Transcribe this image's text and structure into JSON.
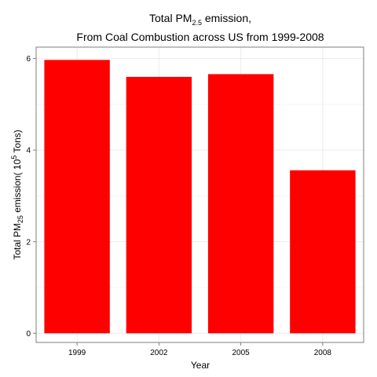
{
  "chart_data": {
    "type": "bar",
    "title_line1": {
      "prefix": "Total PM",
      "sub": "2.5",
      "suffix": " emission,"
    },
    "title_line2": "From Coal Combustion across US from 1999-2008",
    "xlabel": "Year",
    "ylabel": {
      "prefix": "Total PM",
      "sub": "25",
      "middle": " emission( 10",
      "sup": "5",
      "suffix": " Tons)"
    },
    "categories": [
      "1999",
      "2002",
      "2005",
      "2008"
    ],
    "values": [
      5.97,
      5.6,
      5.66,
      3.56
    ],
    "yticks": [
      0,
      2,
      4,
      6
    ],
    "ylim": [
      -0.2,
      6.25
    ],
    "bar_color": "#ff0000",
    "grid": true,
    "panel_border_color": "#7f7f7f",
    "grid_color": "#ebebeb"
  }
}
